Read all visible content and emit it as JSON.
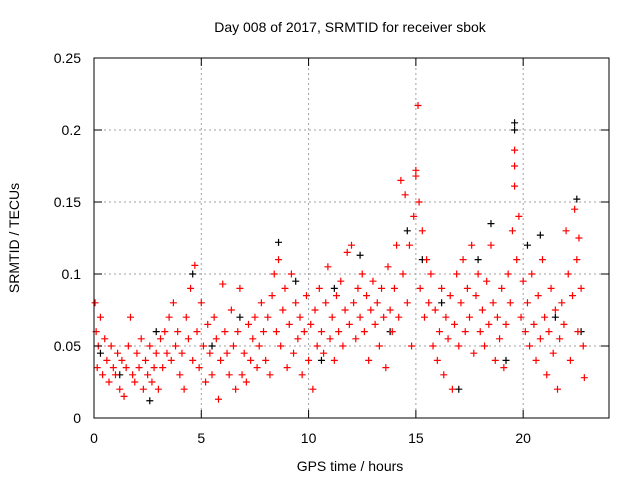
{
  "chart_data": {
    "type": "scatter",
    "title": "Day 008 of 2017, SRMTID for receiver sbok",
    "xlabel": "GPS time / hours",
    "ylabel": "SRMTID / TECUs",
    "xlim": [
      0,
      24
    ],
    "ylim": [
      0,
      0.25
    ],
    "xticks": [
      0,
      5,
      10,
      15,
      20
    ],
    "xtick_labels": [
      "0",
      "5",
      "10",
      "15",
      "20"
    ],
    "yticks": [
      0,
      0.05,
      0.1,
      0.15,
      0.2,
      0.25
    ],
    "ytick_labels": [
      "0",
      "0.05",
      "0.1",
      "0.15",
      "0.2",
      "0.25"
    ],
    "grid": true,
    "marker": "plus",
    "series": [
      {
        "name": "black",
        "color": "#000000",
        "points": [
          [
            0.3,
            0.045
          ],
          [
            1.2,
            0.03
          ],
          [
            2.6,
            0.012
          ],
          [
            2.9,
            0.06
          ],
          [
            4.6,
            0.1
          ],
          [
            5.5,
            0.05
          ],
          [
            6.8,
            0.07
          ],
          [
            8.6,
            0.122
          ],
          [
            9.4,
            0.095
          ],
          [
            10.6,
            0.04
          ],
          [
            11.2,
            0.09
          ],
          [
            12.4,
            0.113
          ],
          [
            13.8,
            0.06
          ],
          [
            14.6,
            0.13
          ],
          [
            15.3,
            0.11
          ],
          [
            16.2,
            0.08
          ],
          [
            17.0,
            0.02
          ],
          [
            17.9,
            0.11
          ],
          [
            18.5,
            0.135
          ],
          [
            19.2,
            0.04
          ],
          [
            19.6,
            0.205
          ],
          [
            19.6,
            0.2
          ],
          [
            20.2,
            0.12
          ],
          [
            20.8,
            0.127
          ],
          [
            21.5,
            0.07
          ],
          [
            22.5,
            0.152
          ],
          [
            22.7,
            0.06
          ]
        ]
      },
      {
        "name": "red",
        "color": "#ff0000",
        "points": [
          [
            0.05,
            0.08
          ],
          [
            0.1,
            0.06
          ],
          [
            0.15,
            0.035
          ],
          [
            0.2,
            0.05
          ],
          [
            0.3,
            0.07
          ],
          [
            0.4,
            0.03
          ],
          [
            0.5,
            0.055
          ],
          [
            0.6,
            0.04
          ],
          [
            0.7,
            0.025
          ],
          [
            0.8,
            0.05
          ],
          [
            0.9,
            0.035
          ],
          [
            1.0,
            0.03
          ],
          [
            1.1,
            0.045
          ],
          [
            1.2,
            0.02
          ],
          [
            1.3,
            0.04
          ],
          [
            1.4,
            0.015
          ],
          [
            1.5,
            0.035
          ],
          [
            1.6,
            0.05
          ],
          [
            1.7,
            0.07
          ],
          [
            1.8,
            0.03
          ],
          [
            1.9,
            0.025
          ],
          [
            2.0,
            0.045
          ],
          [
            2.1,
            0.035
          ],
          [
            2.2,
            0.055
          ],
          [
            2.3,
            0.02
          ],
          [
            2.4,
            0.04
          ],
          [
            2.5,
            0.03
          ],
          [
            2.6,
            0.05
          ],
          [
            2.7,
            0.025
          ],
          [
            2.8,
            0.035
          ],
          [
            2.9,
            0.045
          ],
          [
            3.0,
            0.02
          ],
          [
            3.1,
            0.055
          ],
          [
            3.2,
            0.035
          ],
          [
            3.3,
            0.06
          ],
          [
            3.4,
            0.045
          ],
          [
            3.5,
            0.07
          ],
          [
            3.6,
            0.04
          ],
          [
            3.7,
            0.08
          ],
          [
            3.8,
            0.05
          ],
          [
            3.9,
            0.06
          ],
          [
            4.0,
            0.03
          ],
          [
            4.1,
            0.045
          ],
          [
            4.2,
            0.02
          ],
          [
            4.3,
            0.07
          ],
          [
            4.4,
            0.055
          ],
          [
            4.5,
            0.09
          ],
          [
            4.6,
            0.04
          ],
          [
            4.7,
            0.106
          ],
          [
            4.8,
            0.06
          ],
          [
            4.9,
            0.035
          ],
          [
            5.0,
            0.08
          ],
          [
            5.1,
            0.05
          ],
          [
            5.2,
            0.025
          ],
          [
            5.3,
            0.065
          ],
          [
            5.4,
            0.045
          ],
          [
            5.5,
            0.03
          ],
          [
            5.6,
            0.07
          ],
          [
            5.7,
            0.055
          ],
          [
            5.8,
            0.013
          ],
          [
            5.9,
            0.04
          ],
          [
            6.0,
            0.093
          ],
          [
            6.1,
            0.06
          ],
          [
            6.2,
            0.045
          ],
          [
            6.3,
            0.03
          ],
          [
            6.4,
            0.075
          ],
          [
            6.5,
            0.05
          ],
          [
            6.6,
            0.02
          ],
          [
            6.7,
            0.06
          ],
          [
            6.8,
            0.09
          ],
          [
            6.9,
            0.03
          ],
          [
            7.0,
            0.045
          ],
          [
            7.1,
            0.025
          ],
          [
            7.2,
            0.065
          ],
          [
            7.3,
            0.04
          ],
          [
            7.4,
            0.055
          ],
          [
            7.5,
            0.07
          ],
          [
            7.6,
            0.035
          ],
          [
            7.7,
            0.05
          ],
          [
            7.8,
            0.08
          ],
          [
            7.9,
            0.06
          ],
          [
            8.0,
            0.04
          ],
          [
            8.1,
            0.07
          ],
          [
            8.2,
            0.03
          ],
          [
            8.3,
            0.085
          ],
          [
            8.4,
            0.1
          ],
          [
            8.5,
            0.06
          ],
          [
            8.6,
            0.11
          ],
          [
            8.7,
            0.05
          ],
          [
            8.8,
            0.075
          ],
          [
            8.9,
            0.09
          ],
          [
            9.0,
            0.035
          ],
          [
            9.1,
            0.065
          ],
          [
            9.2,
            0.1
          ],
          [
            9.3,
            0.045
          ],
          [
            9.4,
            0.08
          ],
          [
            9.5,
            0.055
          ],
          [
            9.6,
            0.07
          ],
          [
            9.7,
            0.03
          ],
          [
            9.8,
            0.06
          ],
          [
            9.9,
            0.085
          ],
          [
            10.0,
            0.04
          ],
          [
            10.1,
            0.065
          ],
          [
            10.2,
            0.02
          ],
          [
            10.3,
            0.075
          ],
          [
            10.4,
            0.05
          ],
          [
            10.5,
            0.09
          ],
          [
            10.6,
            0.06
          ],
          [
            10.7,
            0.045
          ],
          [
            10.8,
            0.08
          ],
          [
            10.9,
            0.105
          ],
          [
            11.0,
            0.055
          ],
          [
            11.1,
            0.07
          ],
          [
            11.2,
            0.04
          ],
          [
            11.3,
            0.085
          ],
          [
            11.4,
            0.06
          ],
          [
            11.5,
            0.095
          ],
          [
            11.6,
            0.05
          ],
          [
            11.7,
            0.075
          ],
          [
            11.8,
            0.115
          ],
          [
            11.9,
            0.065
          ],
          [
            12.0,
            0.12
          ],
          [
            12.1,
            0.08
          ],
          [
            12.2,
            0.055
          ],
          [
            12.3,
            0.09
          ],
          [
            12.4,
            0.07
          ],
          [
            12.5,
            0.1
          ],
          [
            12.6,
            0.06
          ],
          [
            12.7,
            0.085
          ],
          [
            12.8,
            0.04
          ],
          [
            12.9,
            0.075
          ],
          [
            13.0,
            0.095
          ],
          [
            13.1,
            0.065
          ],
          [
            13.2,
            0.08
          ],
          [
            13.3,
            0.05
          ],
          [
            13.4,
            0.09
          ],
          [
            13.5,
            0.07
          ],
          [
            13.6,
            0.035
          ],
          [
            13.7,
            0.105
          ],
          [
            13.8,
            0.075
          ],
          [
            13.9,
            0.06
          ],
          [
            14.0,
            0.09
          ],
          [
            14.1,
            0.12
          ],
          [
            14.2,
            0.07
          ],
          [
            14.3,
            0.165
          ],
          [
            14.4,
            0.1
          ],
          [
            14.5,
            0.155
          ],
          [
            14.6,
            0.08
          ],
          [
            14.7,
            0.12
          ],
          [
            14.8,
            0.05
          ],
          [
            14.9,
            0.14
          ],
          [
            15.0,
            0.172
          ],
          [
            15.0,
            0.168
          ],
          [
            15.1,
            0.217
          ],
          [
            15.15,
            0.15
          ],
          [
            15.2,
            0.09
          ],
          [
            15.3,
            0.13
          ],
          [
            15.4,
            0.07
          ],
          [
            15.5,
            0.11
          ],
          [
            15.6,
            0.08
          ],
          [
            15.7,
            0.1
          ],
          [
            15.8,
            0.05
          ],
          [
            15.9,
            0.075
          ],
          [
            16.0,
            0.04
          ],
          [
            16.1,
            0.06
          ],
          [
            16.2,
            0.09
          ],
          [
            16.3,
            0.03
          ],
          [
            16.4,
            0.07
          ],
          [
            16.5,
            0.055
          ],
          [
            16.6,
            0.085
          ],
          [
            16.7,
            0.02
          ],
          [
            16.8,
            0.065
          ],
          [
            16.9,
            0.1
          ],
          [
            17.0,
            0.05
          ],
          [
            17.1,
            0.08
          ],
          [
            17.2,
            0.11
          ],
          [
            17.3,
            0.06
          ],
          [
            17.4,
            0.09
          ],
          [
            17.5,
            0.07
          ],
          [
            17.6,
            0.12
          ],
          [
            17.7,
            0.045
          ],
          [
            17.8,
            0.085
          ],
          [
            17.9,
            0.1
          ],
          [
            18.0,
            0.06
          ],
          [
            18.1,
            0.075
          ],
          [
            18.2,
            0.05
          ],
          [
            18.3,
            0.095
          ],
          [
            18.4,
            0.065
          ],
          [
            18.5,
            0.12
          ],
          [
            18.6,
            0.08
          ],
          [
            18.7,
            0.04
          ],
          [
            18.8,
            0.07
          ],
          [
            18.9,
            0.055
          ],
          [
            19.0,
            0.09
          ],
          [
            19.1,
            0.035
          ],
          [
            19.2,
            0.065
          ],
          [
            19.3,
            0.1
          ],
          [
            19.4,
            0.08
          ],
          [
            19.5,
            0.13
          ],
          [
            19.6,
            0.186
          ],
          [
            19.6,
            0.175
          ],
          [
            19.6,
            0.161
          ],
          [
            19.7,
            0.11
          ],
          [
            19.8,
            0.14
          ],
          [
            19.9,
            0.07
          ],
          [
            20.0,
            0.095
          ],
          [
            20.1,
            0.06
          ],
          [
            20.2,
            0.08
          ],
          [
            20.3,
            0.05
          ],
          [
            20.4,
            0.1
          ],
          [
            20.5,
            0.065
          ],
          [
            20.6,
            0.04
          ],
          [
            20.7,
            0.085
          ],
          [
            20.8,
            0.055
          ],
          [
            20.9,
            0.11
          ],
          [
            21.0,
            0.07
          ],
          [
            21.1,
            0.03
          ],
          [
            21.2,
            0.06
          ],
          [
            21.3,
            0.09
          ],
          [
            21.4,
            0.045
          ],
          [
            21.5,
            0.075
          ],
          [
            21.6,
            0.02
          ],
          [
            21.7,
            0.055
          ],
          [
            21.8,
            0.08
          ],
          [
            21.9,
            0.065
          ],
          [
            22.0,
            0.13
          ],
          [
            22.1,
            0.1
          ],
          [
            22.2,
            0.04
          ],
          [
            22.3,
            0.085
          ],
          [
            22.4,
            0.145
          ],
          [
            22.5,
            0.11
          ],
          [
            22.55,
            0.06
          ],
          [
            22.6,
            0.125
          ],
          [
            22.7,
            0.09
          ],
          [
            22.8,
            0.05
          ],
          [
            22.85,
            0.028
          ]
        ]
      }
    ]
  }
}
